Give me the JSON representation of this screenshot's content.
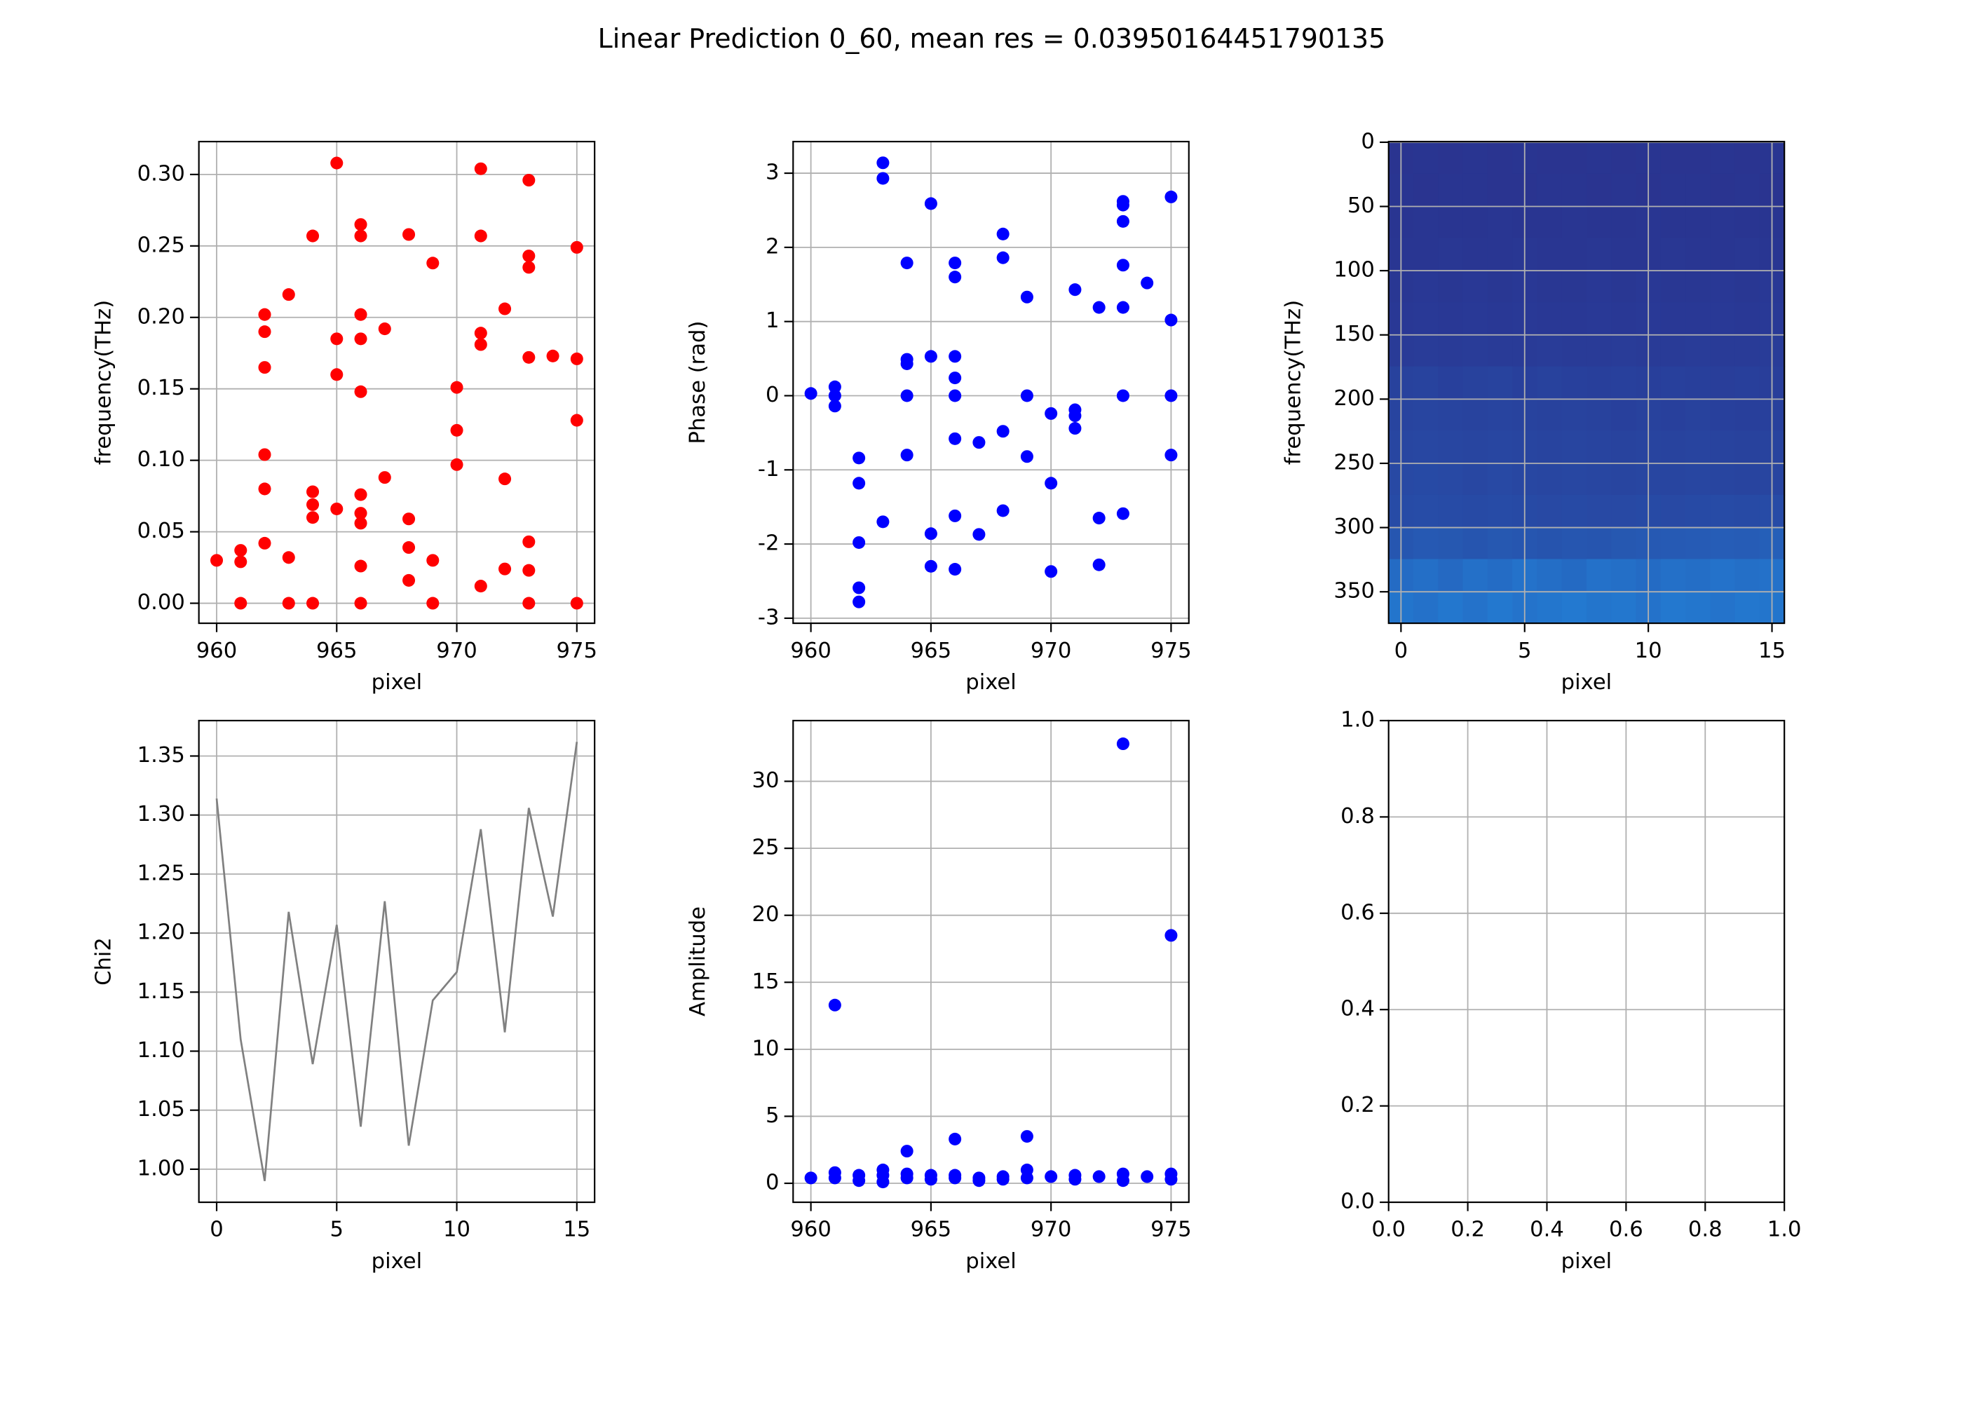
{
  "title": "Linear Prediction 0_60, mean res = 0.03950164451790135",
  "chart_data": [
    {
      "type": "scatter",
      "color": "#ff0000",
      "xlabel": "pixel",
      "ylabel": "frequency(THz)",
      "grid": true,
      "xlim": [
        959.26,
        975.74
      ],
      "xticks": [
        960,
        965,
        970,
        975
      ],
      "ylim": [
        -0.014,
        0.323
      ],
      "yticks": [
        {
          "value": 0,
          "label": "0.00"
        },
        {
          "value": 0.05,
          "label": "0.05"
        },
        {
          "value": 0.1,
          "label": "0.10"
        },
        {
          "value": 0.15,
          "label": "0.15"
        },
        {
          "value": 0.2,
          "label": "0.20"
        },
        {
          "value": 0.25,
          "label": "0.25"
        },
        {
          "value": 0.3,
          "label": "0.30"
        }
      ],
      "x": [
        960,
        961,
        961,
        961,
        962,
        962,
        962,
        962,
        962,
        962,
        963,
        963,
        963,
        964,
        964,
        964,
        964,
        964,
        965,
        965,
        965,
        965,
        966,
        966,
        966,
        966,
        966,
        966,
        966,
        966,
        966,
        966,
        967,
        967,
        968,
        968,
        968,
        968,
        969,
        969,
        969,
        970,
        970,
        970,
        971,
        971,
        971,
        971,
        971,
        972,
        972,
        972,
        973,
        973,
        973,
        973,
        973,
        973,
        973,
        974,
        975,
        975,
        975,
        975
      ],
      "values": [
        0.03,
        0.037,
        0.029,
        0,
        0.202,
        0.19,
        0.165,
        0.104,
        0.08,
        0.042,
        0.216,
        0.032,
        0,
        0.257,
        0.078,
        0.069,
        0.06,
        0,
        0.308,
        0.185,
        0.16,
        0.066,
        0.265,
        0.257,
        0.202,
        0.185,
        0.148,
        0.076,
        0.063,
        0.056,
        0.026,
        0,
        0.192,
        0.088,
        0.258,
        0.059,
        0.039,
        0.016,
        0.238,
        0.03,
        0,
        0.151,
        0.121,
        0.097,
        0.304,
        0.257,
        0.189,
        0.181,
        0.012,
        0.206,
        0.087,
        0.024,
        0.296,
        0.243,
        0.235,
        0.172,
        0.043,
        0.023,
        0,
        0.173,
        0.249,
        0.171,
        0.128,
        0
      ]
    },
    {
      "type": "scatter",
      "color": "#0000ff",
      "xlabel": "pixel",
      "ylabel": "Phase (rad)",
      "grid": true,
      "xlim": [
        959.26,
        975.74
      ],
      "xticks": [
        960,
        965,
        970,
        975
      ],
      "ylim": [
        -3.068,
        3.426
      ],
      "yticks": [
        -3,
        -2,
        -1,
        0,
        1,
        2,
        3
      ],
      "x": [
        960,
        961,
        961,
        961,
        962,
        962,
        962,
        962,
        962,
        963,
        963,
        963,
        964,
        964,
        964,
        964,
        964,
        965,
        965,
        965,
        965,
        966,
        966,
        966,
        966,
        966,
        966,
        966,
        966,
        967,
        967,
        968,
        968,
        968,
        968,
        969,
        969,
        969,
        970,
        970,
        970,
        971,
        971,
        971,
        971,
        972,
        972,
        972,
        973,
        973,
        973,
        973,
        973,
        973,
        973,
        974,
        975,
        975,
        975,
        975
      ],
      "values": [
        0.03,
        0.12,
        0,
        -0.14,
        -0.84,
        -1.18,
        -1.98,
        -2.59,
        -2.78,
        3.14,
        2.93,
        -1.7,
        1.79,
        0.49,
        0.43,
        0,
        -0.8,
        2.59,
        0.53,
        -1.86,
        -2.3,
        1.79,
        1.6,
        0.53,
        0.24,
        0,
        -0.58,
        -1.62,
        -2.34,
        -0.63,
        -1.87,
        2.18,
        1.86,
        -0.48,
        -1.55,
        1.33,
        0,
        -0.82,
        -0.24,
        -1.18,
        -2.37,
        1.43,
        -0.19,
        -0.27,
        -0.44,
        1.19,
        -1.65,
        -2.28,
        2.62,
        2.57,
        2.35,
        1.76,
        1.19,
        0,
        -1.59,
        1.52,
        2.68,
        1.02,
        0,
        -0.8
      ]
    },
    {
      "type": "heatmap",
      "xlabel": "pixel",
      "ylabel": "frequency(THz)",
      "grid": true,
      "xlim": [
        -0.5,
        15.5
      ],
      "xticks": [
        0,
        5,
        10,
        15
      ],
      "ylim": [
        374.5,
        -0.5
      ],
      "yticks": [
        0,
        50,
        100,
        150,
        200,
        250,
        300,
        350
      ],
      "zlim": [
        0,
        1
      ],
      "colormap": [
        "#2a2f8c",
        "#1fa3f7"
      ],
      "z": [
        [
          0.04,
          0.05,
          0.04,
          0.05,
          0.04,
          0.05,
          0.04,
          0.04,
          0.05,
          0.04,
          0.05,
          0.04,
          0.04,
          0.05,
          0.04,
          0.05
        ],
        [
          0.05,
          0.04,
          0.05,
          0.05,
          0.04,
          0.04,
          0.05,
          0.05,
          0.04,
          0.05,
          0.04,
          0.05,
          0.05,
          0.04,
          0.05,
          0.04
        ],
        [
          0.05,
          0.06,
          0.05,
          0.05,
          0.06,
          0.05,
          0.05,
          0.06,
          0.05,
          0.05,
          0.06,
          0.05,
          0.05,
          0.06,
          0.05,
          0.05
        ],
        [
          0.06,
          0.06,
          0.07,
          0.06,
          0.06,
          0.07,
          0.06,
          0.06,
          0.07,
          0.06,
          0.06,
          0.07,
          0.06,
          0.06,
          0.07,
          0.06
        ],
        [
          0.07,
          0.08,
          0.07,
          0.08,
          0.07,
          0.08,
          0.07,
          0.07,
          0.08,
          0.07,
          0.08,
          0.07,
          0.07,
          0.08,
          0.07,
          0.08
        ],
        [
          0.08,
          0.09,
          0.08,
          0.09,
          0.08,
          0.09,
          0.08,
          0.08,
          0.09,
          0.08,
          0.09,
          0.08,
          0.08,
          0.09,
          0.08,
          0.09
        ],
        [
          0.1,
          0.11,
          0.1,
          0.11,
          0.1,
          0.1,
          0.11,
          0.1,
          0.1,
          0.11,
          0.1,
          0.1,
          0.11,
          0.1,
          0.1,
          0.11
        ],
        [
          0.16,
          0.17,
          0.15,
          0.16,
          0.17,
          0.15,
          0.16,
          0.15,
          0.14,
          0.15,
          0.14,
          0.15,
          0.14,
          0.13,
          0.14,
          0.13
        ],
        [
          0.18,
          0.19,
          0.18,
          0.17,
          0.18,
          0.17,
          0.16,
          0.17,
          0.16,
          0.15,
          0.16,
          0.15,
          0.16,
          0.15,
          0.14,
          0.15
        ],
        [
          0.2,
          0.21,
          0.2,
          0.19,
          0.2,
          0.19,
          0.18,
          0.19,
          0.18,
          0.17,
          0.18,
          0.17,
          0.18,
          0.17,
          0.16,
          0.17
        ],
        [
          0.22,
          0.23,
          0.22,
          0.21,
          0.22,
          0.21,
          0.2,
          0.21,
          0.2,
          0.19,
          0.2,
          0.19,
          0.2,
          0.19,
          0.18,
          0.19
        ],
        [
          0.24,
          0.25,
          0.24,
          0.23,
          0.24,
          0.23,
          0.22,
          0.23,
          0.22,
          0.22,
          0.23,
          0.22,
          0.23,
          0.24,
          0.23,
          0.24
        ],
        [
          0.34,
          0.36,
          0.35,
          0.33,
          0.35,
          0.34,
          0.32,
          0.34,
          0.33,
          0.35,
          0.36,
          0.37,
          0.38,
          0.4,
          0.39,
          0.41
        ],
        [
          0.52,
          0.55,
          0.5,
          0.56,
          0.53,
          0.58,
          0.54,
          0.51,
          0.57,
          0.55,
          0.52,
          0.56,
          0.54,
          0.58,
          0.55,
          0.57
        ],
        [
          0.6,
          0.57,
          0.62,
          0.58,
          0.63,
          0.59,
          0.61,
          0.64,
          0.6,
          0.62,
          0.58,
          0.63,
          0.61,
          0.59,
          0.62,
          0.6
        ]
      ]
    },
    {
      "type": "line",
      "color": "#808080",
      "xlabel": "pixel",
      "ylabel": "Chi2",
      "grid": true,
      "xlim": [
        -0.74,
        15.74
      ],
      "xticks": [
        0,
        5,
        10,
        15
      ],
      "ylim": [
        0.972,
        1.38
      ],
      "yticks": [
        {
          "value": 1,
          "label": "1.00"
        },
        {
          "value": 1.05,
          "label": "1.05"
        },
        {
          "value": 1.1,
          "label": "1.10"
        },
        {
          "value": 1.15,
          "label": "1.15"
        },
        {
          "value": 1.2,
          "label": "1.20"
        },
        {
          "value": 1.25,
          "label": "1.25"
        },
        {
          "value": 1.3,
          "label": "1.30"
        },
        {
          "value": 1.35,
          "label": "1.35"
        }
      ],
      "x": [
        0,
        1,
        2,
        3,
        4,
        5,
        6,
        7,
        8,
        9,
        10,
        11,
        12,
        13,
        14,
        15
      ],
      "values": [
        1.314,
        1.11,
        0.99,
        1.218,
        1.089,
        1.207,
        1.036,
        1.227,
        1.02,
        1.143,
        1.167,
        1.288,
        1.116,
        1.306,
        1.214,
        1.362
      ]
    },
    {
      "type": "scatter",
      "color": "#0000ff",
      "xlabel": "pixel",
      "ylabel": "Amplitude",
      "grid": true,
      "xlim": [
        959.26,
        975.74
      ],
      "xticks": [
        960,
        965,
        970,
        975
      ],
      "ylim": [
        -1.415,
        34.53
      ],
      "yticks": [
        0,
        5,
        10,
        15,
        20,
        25,
        30
      ],
      "x": [
        960,
        961,
        961,
        961,
        962,
        962,
        963,
        963,
        963,
        964,
        964,
        964,
        965,
        965,
        966,
        966,
        966,
        967,
        967,
        968,
        968,
        969,
        969,
        969,
        970,
        971,
        971,
        972,
        973,
        973,
        973,
        974,
        975,
        975,
        975
      ],
      "values": [
        0.4,
        13.3,
        0.8,
        0.4,
        0.6,
        0.2,
        1.0,
        0.6,
        0.1,
        2.4,
        0.7,
        0.4,
        0.6,
        0.3,
        3.3,
        0.6,
        0.4,
        0.4,
        0.2,
        0.5,
        0.3,
        3.5,
        1.0,
        0.4,
        0.5,
        0.6,
        0.3,
        0.5,
        32.8,
        0.7,
        0.2,
        0.5,
        18.5,
        0.7,
        0.3
      ]
    },
    {
      "type": "empty",
      "xlabel": "pixel",
      "grid": true,
      "xlim": [
        0,
        1
      ],
      "ylim": [
        0,
        1
      ],
      "xticks": [
        {
          "value": 0,
          "label": "0.0"
        },
        {
          "value": 0.2,
          "label": "0.2"
        },
        {
          "value": 0.4,
          "label": "0.4"
        },
        {
          "value": 0.6,
          "label": "0.6"
        },
        {
          "value": 0.8,
          "label": "0.8"
        },
        {
          "value": 1,
          "label": "1.0"
        }
      ],
      "yticks": [
        {
          "value": 0,
          "label": "0.0"
        },
        {
          "value": 0.2,
          "label": "0.2"
        },
        {
          "value": 0.4,
          "label": "0.4"
        },
        {
          "value": 0.6,
          "label": "0.6"
        },
        {
          "value": 0.8,
          "label": "0.8"
        },
        {
          "value": 1,
          "label": "1.0"
        }
      ]
    }
  ]
}
